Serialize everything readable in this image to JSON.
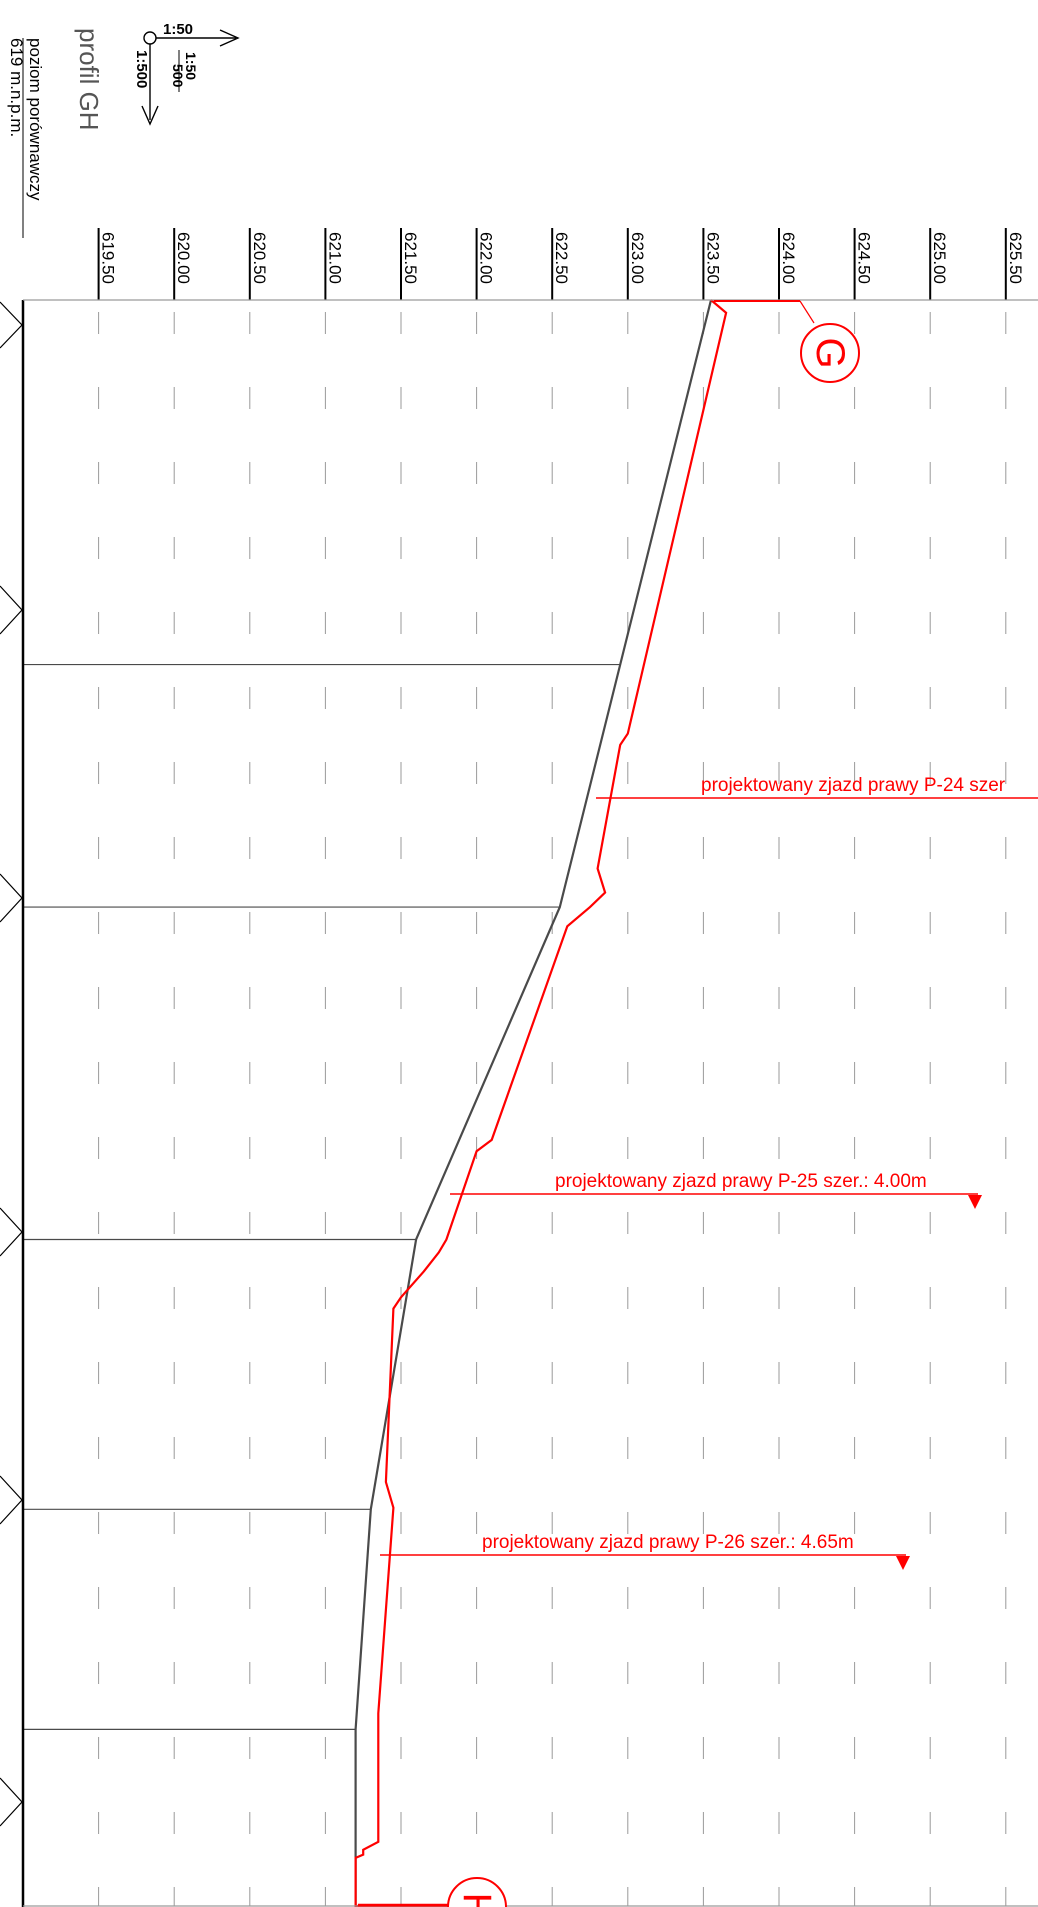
{
  "title": "profil GH",
  "datum": {
    "label": "poziom porównawczy",
    "value": "619 m.n.p.m."
  },
  "scale": {
    "horizontal": "1:50",
    "vertical": "1:500",
    "fraction_top": "1:50",
    "fraction_bottom": "500"
  },
  "colors": {
    "terrain": "#4a4a4a",
    "design": "#ff0000",
    "axis": "#000000",
    "grid": "#9a9a9a"
  },
  "elevation_ticks": [
    "619.50",
    "620.00",
    "620.50",
    "621.00",
    "621.50",
    "622.00",
    "622.50",
    "623.00",
    "623.50",
    "624.00",
    "624.50",
    "625.00",
    "625.50"
  ],
  "points": {
    "start": "G",
    "end": "H"
  },
  "annotations": [
    {
      "text": "projektowany zjazd prawy P-24 szer"
    },
    {
      "text": "projektowany zjazd prawy P-25 szer.: 4.00m"
    },
    {
      "text": "projektowany zjazd prawy P-26 szer.: 4.65m"
    }
  ],
  "chart_data": {
    "type": "line",
    "title": "profil GH",
    "xlabel": "",
    "ylabel": "",
    "elevation_range": [
      619.0,
      625.5
    ],
    "datum": 619.0,
    "grid": true,
    "series": [
      {
        "elevation": [
          623.55,
          622.95,
          622.55,
          621.6,
          621.3,
          621.2,
          621.2
        ],
        "relative_position": [
          0.0,
          0.227,
          0.378,
          0.585,
          0.753,
          0.89,
          1.0
        ]
      },
      {
        "elevation": [
          623.55,
          623.65,
          623.0,
          622.95,
          622.8,
          622.85,
          622.75,
          622.6,
          622.1,
          622.0,
          621.8,
          621.75,
          621.65,
          621.5,
          621.45,
          621.4,
          621.45,
          621.35,
          621.35,
          621.25,
          621.25,
          621.2,
          621.2,
          622.0
        ],
        "relative_position": [
          0.0,
          0.008,
          0.27,
          0.277,
          0.354,
          0.369,
          0.378,
          0.39,
          0.523,
          0.53,
          0.585,
          0.593,
          0.605,
          0.621,
          0.628,
          0.736,
          0.752,
          0.88,
          0.96,
          0.965,
          0.968,
          0.97,
          1.0,
          1.0
        ]
      }
    ]
  }
}
